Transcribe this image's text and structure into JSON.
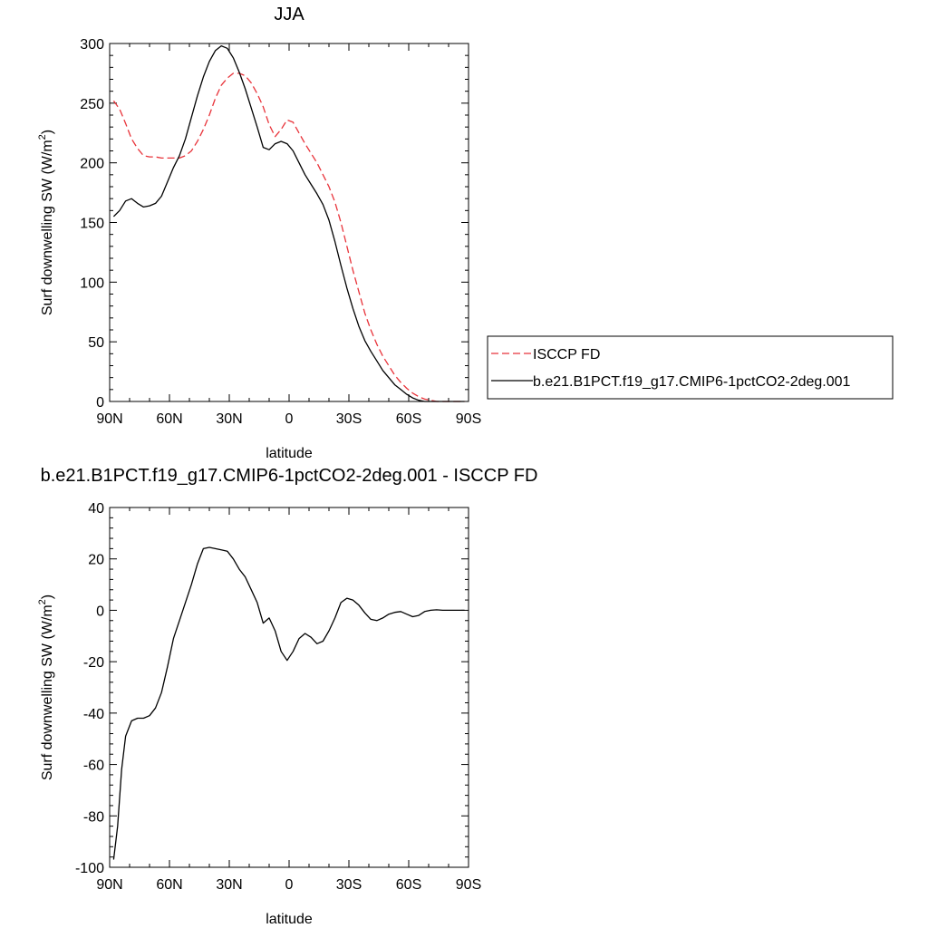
{
  "chart_data": [
    {
      "type": "line",
      "title": "JJA",
      "xlabel": "latitude",
      "ylabel": {
        "main": "Surf downwelling SW (W/m",
        "sup": "2",
        "tail": ")"
      },
      "xlim": [
        90,
        -90
      ],
      "ylim": [
        0,
        300
      ],
      "xticks": [
        90,
        60,
        30,
        0,
        -30,
        -60,
        -90
      ],
      "xtick_labels": [
        "90N",
        "60N",
        "30N",
        "0",
        "30S",
        "60S",
        "90S"
      ],
      "yticks": [
        0,
        50,
        100,
        150,
        200,
        250,
        300
      ],
      "ytick_labels": [
        "0",
        "50",
        "100",
        "150",
        "200",
        "250",
        "300"
      ],
      "grid": false,
      "legend_position": "right",
      "series": [
        {
          "name": "ISCCP FD",
          "color": "#e8333a",
          "dash": "dashed",
          "x": [
            88,
            85,
            82,
            79,
            76,
            73,
            70,
            67,
            64,
            61,
            58,
            55,
            52,
            49,
            46,
            43,
            40,
            37,
            34,
            31,
            28,
            25,
            22,
            19,
            16,
            13,
            10,
            7,
            4,
            1,
            -2,
            -5,
            -8,
            -11,
            -14,
            -17,
            -20,
            -23,
            -26,
            -29,
            -32,
            -35,
            -38,
            -41,
            -44,
            -47,
            -50,
            -53,
            -56,
            -59,
            -62,
            -65,
            -68,
            -71,
            -74,
            -77,
            -80,
            -83,
            -86,
            -88
          ],
          "y": [
            252,
            245,
            233,
            220,
            212,
            206,
            205,
            205,
            204,
            204,
            204,
            204,
            206,
            210,
            218,
            228,
            240,
            254,
            265,
            271,
            275,
            275,
            273,
            267,
            258,
            247,
            232,
            222,
            228,
            236,
            234,
            225,
            216,
            208,
            200,
            190,
            180,
            167,
            150,
            130,
            110,
            92,
            74,
            60,
            48,
            38,
            30,
            22,
            16,
            11,
            7,
            4,
            2,
            1,
            0,
            0,
            0,
            0,
            0,
            0
          ]
        },
        {
          "name": "b.e21.B1PCT.f19_g17.CMIP6-1pctCO2-2deg.001",
          "color": "#000000",
          "dash": "solid",
          "x": [
            88,
            85,
            82,
            79,
            76,
            73,
            70,
            67,
            64,
            61,
            58,
            55,
            52,
            49,
            46,
            43,
            40,
            37,
            34,
            31,
            28,
            25,
            22,
            19,
            16,
            13,
            10,
            7,
            4,
            1,
            -2,
            -5,
            -8,
            -11,
            -14,
            -17,
            -20,
            -23,
            -26,
            -29,
            -32,
            -35,
            -38,
            -41,
            -44,
            -47,
            -50,
            -53,
            -56,
            -59,
            -62,
            -65,
            -68,
            -71,
            -74,
            -77,
            -80,
            -83,
            -86,
            -88
          ],
          "y": [
            155,
            160,
            168,
            170,
            166,
            163,
            164,
            166,
            172,
            184,
            196,
            206,
            220,
            238,
            256,
            272,
            285,
            294,
            298,
            296,
            288,
            276,
            262,
            246,
            230,
            213,
            211,
            216,
            218,
            216,
            210,
            200,
            190,
            182,
            174,
            165,
            152,
            134,
            114,
            95,
            78,
            63,
            51,
            42,
            34,
            26,
            20,
            14,
            10,
            6,
            3,
            1,
            0,
            0,
            0,
            0,
            0,
            0,
            0,
            0
          ]
        }
      ]
    },
    {
      "type": "line",
      "title": "b.e21.B1PCT.f19_g17.CMIP6-1pctCO2-2deg.001 - ISCCP FD",
      "xlabel": "latitude",
      "ylabel": {
        "main": "Surf downwelling SW (W/m",
        "sup": "2",
        "tail": ")"
      },
      "xlim": [
        90,
        -90
      ],
      "ylim": [
        -100,
        40
      ],
      "xticks": [
        90,
        60,
        30,
        0,
        -30,
        -60,
        -90
      ],
      "xtick_labels": [
        "90N",
        "60N",
        "30N",
        "0",
        "30S",
        "60S",
        "90S"
      ],
      "yticks": [
        -100,
        -80,
        -60,
        -40,
        -20,
        0,
        20,
        40
      ],
      "ytick_labels": [
        "-100",
        "-80",
        "-60",
        "-40",
        "-20",
        "0",
        "20",
        "40"
      ],
      "grid": false,
      "series": [
        {
          "color": "#000000",
          "dash": "solid",
          "x": [
            88,
            86,
            84,
            82,
            79,
            76,
            73,
            70,
            67,
            64,
            61,
            58,
            55,
            52,
            49,
            46,
            43,
            40,
            37,
            34,
            31,
            28,
            25,
            22,
            19,
            16,
            13,
            10,
            7,
            4,
            1,
            -2,
            -5,
            -8,
            -11,
            -14,
            -17,
            -20,
            -23,
            -26,
            -29,
            -32,
            -35,
            -38,
            -41,
            -44,
            -47,
            -50,
            -53,
            -56,
            -59,
            -62,
            -65,
            -68,
            -71,
            -74,
            -77,
            -80,
            -83,
            -86,
            -88
          ],
          "y": [
            -97,
            -84,
            -62,
            -49,
            -43,
            -42,
            -42,
            -41,
            -38,
            -32,
            -22,
            -11,
            -4,
            3,
            10,
            18,
            24,
            24.5,
            24,
            23.5,
            23,
            20,
            16,
            13,
            8,
            3,
            -5,
            -3,
            -8,
            -16,
            -19.5,
            -16,
            -11,
            -9,
            -10.5,
            -13,
            -12,
            -8,
            -3,
            3,
            4.7,
            4,
            2,
            -1,
            -3.5,
            -4,
            -3,
            -1.5,
            -0.8,
            -0.5,
            -1.5,
            -2.5,
            -2,
            -0.5,
            0,
            0.2,
            0,
            0,
            0,
            0,
            0
          ]
        }
      ]
    }
  ]
}
